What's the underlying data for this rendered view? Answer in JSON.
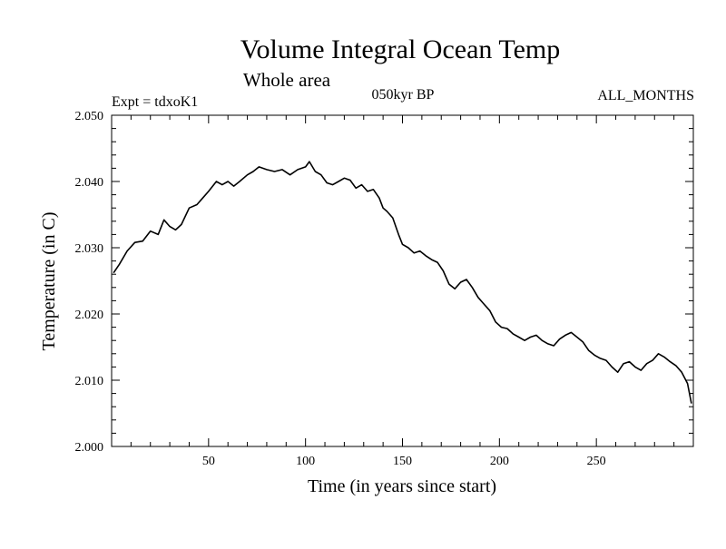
{
  "chart_data": {
    "type": "line",
    "title": "Volume Integral Ocean Temp",
    "subtitle": "Whole area",
    "annotation_left": "Expt = tdxoK1",
    "annotation_center": "050kyr BP",
    "annotation_right": "ALL_MONTHS",
    "xlabel": "Time (in years since start)",
    "ylabel": "Temperature (in C)",
    "xlim": [
      0,
      300
    ],
    "ylim": [
      2.0,
      2.05
    ],
    "xticks": [
      50,
      100,
      150,
      200,
      250
    ],
    "xtick_labels": [
      "50",
      "100",
      "150",
      "200",
      "250"
    ],
    "yticks": [
      2.0,
      2.01,
      2.02,
      2.03,
      2.04,
      2.05
    ],
    "ytick_labels": [
      "2.000",
      "2.010",
      "2.020",
      "2.030",
      "2.040",
      "2.050"
    ],
    "grid": false,
    "color": "#000000",
    "series": [
      {
        "name": "Volume Integral Ocean Temp",
        "x": [
          1,
          4,
          8,
          12,
          16,
          20,
          24,
          27,
          30,
          33,
          36,
          40,
          44,
          47,
          50,
          54,
          57,
          60,
          63,
          66,
          70,
          73,
          76,
          80,
          84,
          88,
          92,
          96,
          100,
          102,
          105,
          108,
          111,
          114,
          117,
          120,
          123,
          126,
          129,
          132,
          135,
          138,
          140,
          142,
          145,
          148,
          150,
          153,
          156,
          159,
          162,
          165,
          168,
          171,
          174,
          177,
          180,
          183,
          186,
          189,
          192,
          195,
          198,
          201,
          204,
          207,
          210,
          213,
          216,
          219,
          222,
          225,
          228,
          231,
          234,
          237,
          240,
          243,
          246,
          249,
          252,
          255,
          258,
          261,
          264,
          267,
          270,
          273,
          276,
          279,
          282,
          285,
          288,
          291,
          294,
          297,
          299
        ],
        "y": [
          2.0262,
          2.0275,
          2.0295,
          2.0308,
          2.031,
          2.0325,
          2.032,
          2.0342,
          2.0332,
          2.0327,
          2.0335,
          2.036,
          2.0365,
          2.0375,
          2.0385,
          2.04,
          2.0395,
          2.04,
          2.0393,
          2.04,
          2.041,
          2.0415,
          2.0422,
          2.0418,
          2.0415,
          2.0418,
          2.041,
          2.0418,
          2.0422,
          2.043,
          2.0415,
          2.041,
          2.0398,
          2.0395,
          2.04,
          2.0405,
          2.0402,
          2.039,
          2.0395,
          2.0385,
          2.0388,
          2.0375,
          2.036,
          2.0355,
          2.0345,
          2.032,
          2.0305,
          2.03,
          2.0292,
          2.0295,
          2.0288,
          2.0282,
          2.0278,
          2.0265,
          2.0245,
          2.0238,
          2.0248,
          2.0252,
          2.024,
          2.0225,
          2.0215,
          2.0205,
          2.0188,
          2.018,
          2.0178,
          2.017,
          2.0165,
          2.016,
          2.0165,
          2.0168,
          2.016,
          2.0155,
          2.0152,
          2.0162,
          2.0168,
          2.0172,
          2.0165,
          2.0158,
          2.0145,
          2.0138,
          2.0133,
          2.013,
          2.012,
          2.0112,
          2.0125,
          2.0128,
          2.012,
          2.0115,
          2.0125,
          2.013,
          2.014,
          2.0135,
          2.0128,
          2.0122,
          2.0112,
          2.0095,
          2.0065
        ]
      }
    ]
  }
}
